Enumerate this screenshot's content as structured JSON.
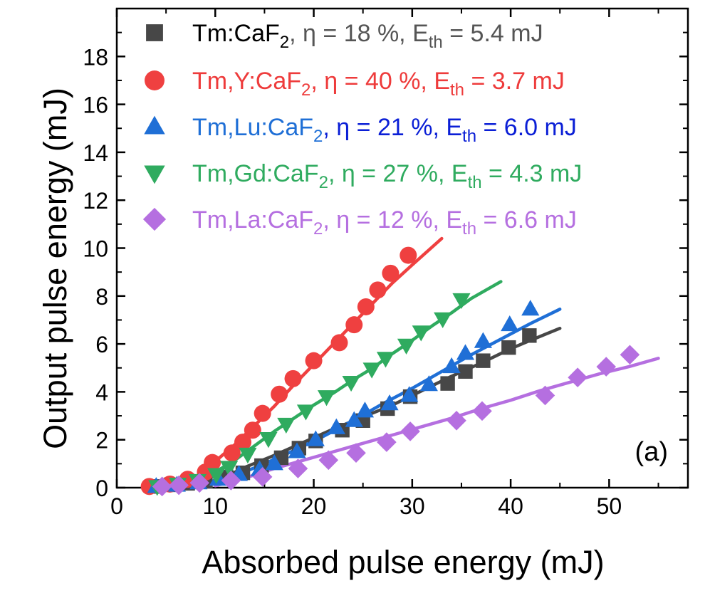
{
  "chart_data": {
    "type": "scatter",
    "panel_label": "(a)",
    "xlabel": "Absorbed pulse energy (mJ)",
    "ylabel": "Output pulse energy (mJ)",
    "xlim": [
      0,
      58
    ],
    "ylim": [
      0,
      20
    ],
    "x_ticks": [
      0,
      10,
      20,
      30,
      40,
      50
    ],
    "y_ticks": [
      0,
      2,
      4,
      6,
      8,
      10,
      12,
      14,
      16,
      18
    ],
    "grid": false,
    "legend_position": "top-left",
    "series": [
      {
        "name": "Tm:CaF2",
        "legend_parts": {
          "host": "Tm:CaF",
          "sub": "2",
          "eff": ", η = 18 %, E",
          "eth_sub": "th",
          "eth_val": " = 5.4 mJ"
        },
        "marker": "square",
        "color": "#474747",
        "text_color": "#555555",
        "label_color": "#000000",
        "points": [
          [
            3.7,
            0.05
          ],
          [
            5.5,
            0.12
          ],
          [
            7.2,
            0.18
          ],
          [
            9.0,
            0.28
          ],
          [
            11.1,
            0.45
          ],
          [
            12.8,
            0.62
          ],
          [
            14.7,
            0.92
          ],
          [
            16.7,
            1.25
          ],
          [
            18.5,
            1.65
          ],
          [
            20.2,
            1.95
          ],
          [
            22.9,
            2.4
          ],
          [
            25.0,
            2.8
          ],
          [
            27.5,
            3.3
          ],
          [
            29.8,
            3.8
          ],
          [
            33.6,
            4.35
          ],
          [
            35.4,
            4.85
          ],
          [
            37.2,
            5.3
          ],
          [
            39.8,
            5.85
          ],
          [
            41.9,
            6.35
          ]
        ],
        "fit": [
          [
            11.0,
            0.45
          ],
          [
            13,
            0.85
          ],
          [
            16,
            1.35
          ],
          [
            19,
            1.9
          ],
          [
            22,
            2.45
          ],
          [
            25,
            2.95
          ],
          [
            28,
            3.45
          ],
          [
            31,
            4.05
          ],
          [
            34,
            4.65
          ],
          [
            37,
            5.2
          ],
          [
            40,
            5.8
          ],
          [
            42,
            6.15
          ],
          [
            45,
            6.65
          ]
        ]
      },
      {
        "name": "Tm,Y:CaF2",
        "legend_parts": {
          "host": "Tm,Y:CaF",
          "sub": "2",
          "eff": ", η = 40 %, E",
          "eth_sub": "th",
          "eth_val": " = 3.7 mJ"
        },
        "marker": "circle",
        "color": "#ef4040",
        "text_color": "#ee3b3b",
        "label_color": "#ee3b3b",
        "points": [
          [
            3.3,
            0.05
          ],
          [
            5.4,
            0.15
          ],
          [
            7.2,
            0.35
          ],
          [
            9.0,
            0.65
          ],
          [
            9.7,
            1.05
          ],
          [
            11.7,
            1.45
          ],
          [
            12.8,
            1.9
          ],
          [
            13.8,
            2.4
          ],
          [
            14.8,
            3.1
          ],
          [
            16.5,
            3.9
          ],
          [
            17.9,
            4.55
          ],
          [
            20.0,
            5.3
          ],
          [
            22.6,
            6.05
          ],
          [
            24.1,
            6.8
          ],
          [
            25.3,
            7.55
          ],
          [
            26.5,
            8.25
          ],
          [
            27.8,
            8.95
          ],
          [
            29.6,
            9.7
          ]
        ],
        "fit": [
          [
            5.4,
            0.08
          ],
          [
            8,
            0.45
          ],
          [
            10,
            1.1
          ],
          [
            12,
            1.8
          ],
          [
            14,
            2.6
          ],
          [
            16,
            3.4
          ],
          [
            18,
            4.3
          ],
          [
            20,
            5.15
          ],
          [
            22,
            6.0
          ],
          [
            24,
            6.85
          ],
          [
            26,
            7.7
          ],
          [
            28,
            8.55
          ],
          [
            30,
            9.3
          ],
          [
            33,
            10.4
          ]
        ]
      },
      {
        "name": "Tm,Lu:CaF2",
        "legend_parts": {
          "host": "Tm,Lu:CaF",
          "sub": "2",
          "eff": ", η = 21 %, E",
          "eth_sub": "th",
          "eth_val": " = 6.0 mJ"
        },
        "marker": "triangle-up",
        "color": "#1f6fd6",
        "text_color": "#0b1fd6",
        "label_color": "#1f6fd6",
        "points": [
          [
            4.0,
            0.05
          ],
          [
            6.1,
            0.1
          ],
          [
            8.3,
            0.2
          ],
          [
            10.3,
            0.35
          ],
          [
            12.4,
            0.55
          ],
          [
            14.5,
            0.75
          ],
          [
            16.0,
            1.0
          ],
          [
            18.3,
            1.5
          ],
          [
            20.2,
            2.0
          ],
          [
            22.3,
            2.5
          ],
          [
            24.1,
            2.8
          ],
          [
            25.2,
            3.2
          ],
          [
            27.7,
            3.5
          ],
          [
            29.7,
            3.85
          ],
          [
            31.7,
            4.3
          ],
          [
            34.0,
            5.05
          ],
          [
            35.4,
            5.6
          ],
          [
            37.2,
            6.1
          ],
          [
            39.9,
            6.8
          ],
          [
            42.0,
            7.45
          ]
        ],
        "fit": [
          [
            10.0,
            0.2
          ],
          [
            12,
            0.5
          ],
          [
            15,
            1.0
          ],
          [
            18,
            1.55
          ],
          [
            21,
            2.15
          ],
          [
            24,
            2.8
          ],
          [
            27,
            3.5
          ],
          [
            30,
            4.15
          ],
          [
            33,
            4.85
          ],
          [
            36,
            5.55
          ],
          [
            39,
            6.2
          ],
          [
            42,
            6.85
          ],
          [
            45,
            7.45
          ]
        ]
      },
      {
        "name": "Tm,Gd:CaF2",
        "legend_parts": {
          "host": "Tm,Gd:CaF",
          "sub": "2",
          "eff": ", η = 27 %, E",
          "eth_sub": "th",
          "eth_val": " = 4.3 mJ"
        },
        "marker": "triangle-down",
        "color": "#2fab5f",
        "text_color": "#2fab5f",
        "label_color": "#2fab5f",
        "points": [
          [
            4.1,
            0.05
          ],
          [
            6.2,
            0.15
          ],
          [
            8.2,
            0.3
          ],
          [
            10.1,
            0.55
          ],
          [
            11.4,
            0.85
          ],
          [
            13.3,
            1.4
          ],
          [
            15.4,
            2.05
          ],
          [
            17.2,
            2.65
          ],
          [
            19.2,
            3.2
          ],
          [
            21.3,
            3.8
          ],
          [
            23.8,
            4.4
          ],
          [
            25.9,
            4.95
          ],
          [
            27.3,
            5.4
          ],
          [
            29.4,
            5.95
          ],
          [
            30.9,
            6.5
          ],
          [
            33.1,
            7.05
          ],
          [
            35.0,
            7.85
          ]
        ],
        "fit": [
          [
            8.5,
            0.25
          ],
          [
            10,
            0.65
          ],
          [
            12,
            1.15
          ],
          [
            14,
            1.75
          ],
          [
            16,
            2.35
          ],
          [
            18,
            2.9
          ],
          [
            20,
            3.45
          ],
          [
            22,
            3.95
          ],
          [
            24,
            4.5
          ],
          [
            26,
            5.0
          ],
          [
            28,
            5.6
          ],
          [
            30,
            6.15
          ],
          [
            32,
            6.75
          ],
          [
            34,
            7.3
          ],
          [
            36,
            7.9
          ],
          [
            39,
            8.6
          ]
        ]
      },
      {
        "name": "Tm,La:CaF2",
        "legend_parts": {
          "host": "Tm,La:CaF",
          "sub": "2",
          "eff": ", η = 12 %, E",
          "eth_sub": "th",
          "eth_val": " = 6.6 mJ"
        },
        "marker": "diamond",
        "color": "#b56fe0",
        "text_color": "#b56fe0",
        "label_color": "#b56fe0",
        "points": [
          [
            4.6,
            0.05
          ],
          [
            6.3,
            0.1
          ],
          [
            8.4,
            0.2
          ],
          [
            11.6,
            0.3
          ],
          [
            14.8,
            0.45
          ],
          [
            18.4,
            0.8
          ],
          [
            21.5,
            1.15
          ],
          [
            24.3,
            1.45
          ],
          [
            27.4,
            1.9
          ],
          [
            29.8,
            2.35
          ],
          [
            34.5,
            2.8
          ],
          [
            37.1,
            3.2
          ],
          [
            43.5,
            3.85
          ],
          [
            46.8,
            4.6
          ],
          [
            49.7,
            5.05
          ],
          [
            52.1,
            5.55
          ]
        ],
        "fit": [
          [
            10.0,
            0.08
          ],
          [
            13,
            0.4
          ],
          [
            16,
            0.8
          ],
          [
            19,
            1.15
          ],
          [
            22,
            1.5
          ],
          [
            25,
            1.85
          ],
          [
            28,
            2.2
          ],
          [
            31,
            2.55
          ],
          [
            34,
            2.9
          ],
          [
            37,
            3.3
          ],
          [
            40,
            3.65
          ],
          [
            43,
            4.05
          ],
          [
            46,
            4.4
          ],
          [
            49,
            4.75
          ],
          [
            52,
            5.05
          ],
          [
            55,
            5.4
          ]
        ]
      }
    ]
  }
}
